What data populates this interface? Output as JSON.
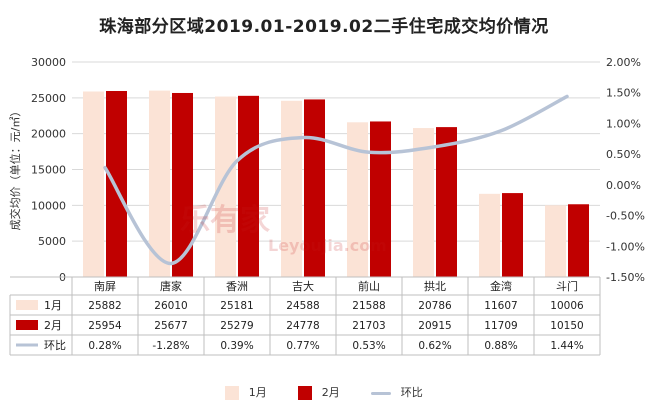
{
  "chart_data": {
    "type": "bar",
    "title": "珠海部分区域2019.01-2019.02二手住宅成交均价情况",
    "ylabel": "成交均价（单位：元/㎡）",
    "categories": [
      "南屏",
      "唐家",
      "香洲",
      "吉大",
      "前山",
      "拱北",
      "金湾",
      "斗门"
    ],
    "ylim": [
      0,
      30000
    ],
    "y_ticks": [
      "0",
      "5000",
      "10000",
      "15000",
      "20000",
      "25000",
      "30000"
    ],
    "y2lim": [
      -1.5,
      2.0
    ],
    "y2_ticks": [
      "-1.50%",
      "-1.00%",
      "-0.50%",
      "0.00%",
      "0.50%",
      "1.00%",
      "1.50%",
      "2.00%"
    ],
    "series": [
      {
        "name": "1月",
        "type": "bar",
        "color": "#fbe3d6",
        "values": [
          25882,
          26010,
          25181,
          24588,
          21588,
          20786,
          11607,
          10006
        ],
        "labels": [
          "25882",
          "26010",
          "25181",
          "24588",
          "21588",
          "20786",
          "11607",
          "10006"
        ]
      },
      {
        "name": "2月",
        "type": "bar",
        "color": "#c00000",
        "values": [
          25954,
          25677,
          25279,
          24778,
          21703,
          20915,
          11709,
          10150
        ],
        "labels": [
          "25954",
          "25677",
          "25279",
          "24778",
          "21703",
          "20915",
          "11709",
          "10150"
        ]
      },
      {
        "name": "环比",
        "type": "line",
        "axis": "secondary",
        "color": "#b7c3d6",
        "values": [
          0.28,
          -1.28,
          0.39,
          0.77,
          0.53,
          0.62,
          0.88,
          1.44
        ],
        "labels": [
          "0.28%",
          "-1.28%",
          "0.39%",
          "0.77%",
          "0.53%",
          "0.62%",
          "0.88%",
          "1.44%"
        ]
      }
    ],
    "grid": true,
    "legend_position": "bottom"
  },
  "watermark": {
    "logo_text": "乐有家",
    "url_text": "Leyoujia.com"
  }
}
